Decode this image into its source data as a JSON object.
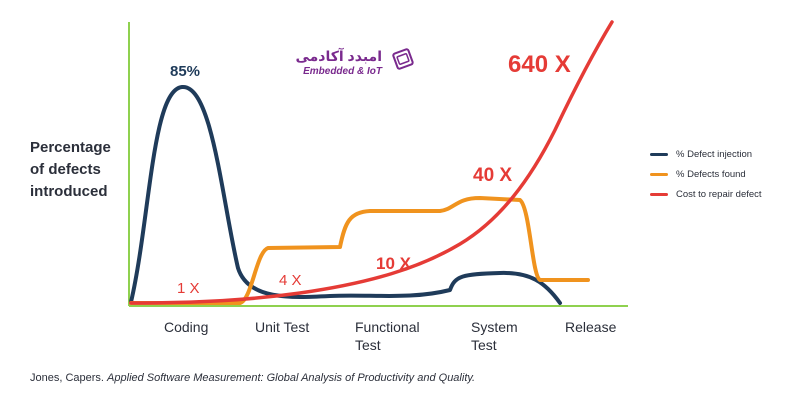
{
  "chart_data": {
    "type": "line",
    "ylabel": "Percentage\nof defects\nintroduced",
    "categories": [
      "Coding",
      "Unit Test",
      "Functional\nTest",
      "System\nTest",
      "Release"
    ],
    "series": [
      {
        "name": "% Defect injection",
        "color": "#1f3b5a"
      },
      {
        "name": "% Defects found",
        "color": "#f0931e"
      },
      {
        "name": "Cost to repair defect",
        "color": "#e53b36"
      }
    ],
    "annotations": [
      {
        "text": "85%",
        "color": "#1f3b5a"
      },
      {
        "text": "1 X",
        "color": "#e53b36"
      },
      {
        "text": "4 X",
        "color": "#e53b36"
      },
      {
        "text": "10 X",
        "color": "#e53b36"
      },
      {
        "text": "40 X",
        "color": "#e53b36"
      },
      {
        "text": "640 X",
        "color": "#e53b36"
      }
    ],
    "legend_position": "right",
    "axis_color": "#8fd14f"
  },
  "citation": {
    "author": "Jones, Capers.",
    "title": "Applied Software Measurement: Global Analysis of Productivity and Quality."
  },
  "watermark": {
    "text_fa": "امبدد آکادمی",
    "text_en": "Embedded & IoT",
    "icon": "book-icon"
  }
}
